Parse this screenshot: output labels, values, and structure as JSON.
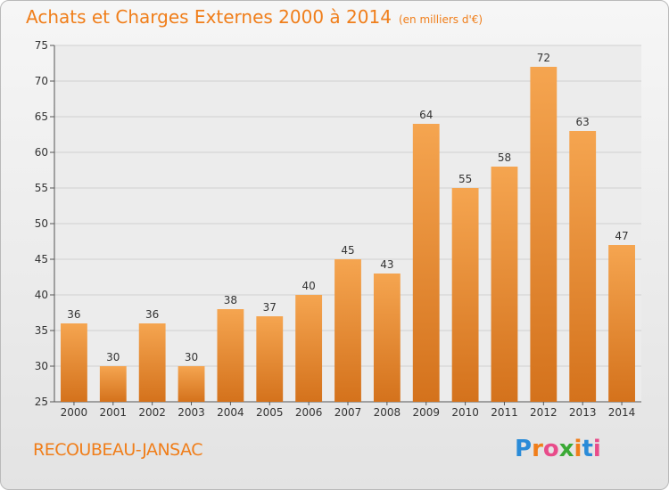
{
  "header": {
    "title": "Achats et Charges Externes 2000 à 2014",
    "unit": "(en milliers d'€)"
  },
  "footer": {
    "commune": "RECOUBEAU-JANSAC",
    "logo_text": "Proxiti",
    "logo_colors": [
      "#2a8bd8",
      "#f07e1a",
      "#e84c8a",
      "#3aa935",
      "#f07e1a",
      "#2a8bd8",
      "#e84c8a"
    ]
  },
  "chart_data": {
    "type": "bar",
    "title": "Achats et Charges Externes 2000 à 2014",
    "categories": [
      "2000",
      "2001",
      "2002",
      "2003",
      "2004",
      "2005",
      "2006",
      "2007",
      "2008",
      "2009",
      "2010",
      "2011",
      "2012",
      "2013",
      "2014"
    ],
    "values": [
      36,
      30,
      36,
      30,
      38,
      37,
      40,
      45,
      43,
      64,
      55,
      58,
      72,
      63,
      47
    ],
    "ylim": [
      25,
      75
    ],
    "yticks": [
      25,
      30,
      35,
      40,
      45,
      50,
      55,
      60,
      65,
      70,
      75
    ],
    "grid": true,
    "bar_color": "#f09a3e",
    "bar_color_dark": "#d0701a"
  }
}
